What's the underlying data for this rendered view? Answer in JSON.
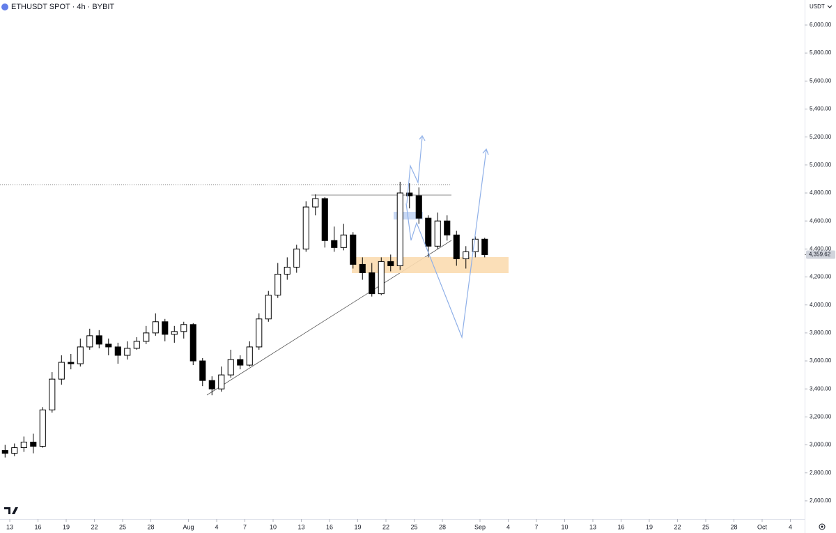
{
  "chart_data": {
    "type": "candlestick",
    "title": "ETHUSDT SPOT · 4h · BYBIT",
    "currency": "USDT",
    "up_color": "#ffffff",
    "down_color": "#000000",
    "x": [
      12.5,
      13.5,
      14.5,
      15.5,
      16.5,
      17.5,
      18.5,
      19.5,
      20.5,
      21.5,
      22.5,
      23.5,
      24.5,
      25.5,
      26.5,
      27.5,
      28.5,
      29.5,
      30.5,
      31.5,
      32.5,
      33.5,
      34.5,
      35.5,
      36.5,
      37.5,
      38.5,
      39.5,
      40.5,
      41.5,
      42.5,
      43.5,
      44.5,
      45.5,
      46.5,
      47.5,
      48.5,
      49.5,
      50.5,
      51.5,
      52.5,
      53.5,
      54.5,
      55.5,
      56.5,
      57.5,
      58.5,
      59.5,
      60.5,
      61.5,
      62.5,
      63.5
    ],
    "open": [
      2960,
      2940,
      2980,
      3020,
      2990,
      3250,
      3470,
      3590,
      3580,
      3700,
      3780,
      3720,
      3700,
      3640,
      3690,
      3740,
      3800,
      3880,
      3790,
      3810,
      3860,
      3600,
      3460,
      3400,
      3500,
      3610,
      3570,
      3700,
      3900,
      4070,
      4220,
      4270,
      4400,
      4700,
      4760,
      4460,
      4410,
      4500,
      4290,
      4230,
      4080,
      4310,
      4280,
      4800,
      4780,
      4620,
      4420,
      4600,
      4500,
      4330,
      4380,
      4470
    ],
    "high": [
      3000,
      3010,
      3060,
      3080,
      3270,
      3520,
      3640,
      3650,
      3760,
      3830,
      3820,
      3760,
      3730,
      3740,
      3770,
      3850,
      3940,
      3900,
      3850,
      3880,
      3870,
      3620,
      3490,
      3560,
      3680,
      3640,
      3740,
      3940,
      4100,
      4300,
      4340,
      4430,
      4740,
      4790,
      4770,
      4560,
      4580,
      4520,
      4340,
      4300,
      4340,
      4360,
      4880,
      4870,
      4840,
      4640,
      4660,
      4640,
      4530,
      4420,
      4490,
      4480
    ],
    "low": [
      2910,
      2920,
      2950,
      2940,
      2980,
      3230,
      3430,
      3540,
      3560,
      3680,
      3690,
      3640,
      3580,
      3610,
      3680,
      3720,
      3780,
      3740,
      3730,
      3760,
      3570,
      3420,
      3355,
      3380,
      3480,
      3540,
      3560,
      3680,
      3880,
      4050,
      4180,
      4230,
      4380,
      4640,
      4410,
      4380,
      4390,
      4260,
      4180,
      4060,
      4070,
      4240,
      4250,
      4690,
      4580,
      4340,
      4400,
      4460,
      4280,
      4260,
      4340,
      4340
    ],
    "close": [
      2940,
      2980,
      3020,
      2990,
      3250,
      3470,
      3590,
      3580,
      3700,
      3780,
      3720,
      3700,
      3640,
      3690,
      3740,
      3800,
      3880,
      3790,
      3810,
      3860,
      3600,
      3460,
      3400,
      3500,
      3610,
      3570,
      3700,
      3900,
      4070,
      4220,
      4270,
      4400,
      4700,
      4760,
      4460,
      4410,
      4500,
      4290,
      4230,
      4080,
      4310,
      4280,
      4800,
      4780,
      4620,
      4420,
      4600,
      4500,
      4330,
      4380,
      4470,
      4359.62
    ],
    "last_price": {
      "value": 4359.62,
      "label": "4,359.62"
    },
    "xlim": [
      11.96,
      97.52
    ],
    "ylim": [
      2470,
      6179
    ],
    "xticks": [
      13,
      16,
      19,
      22,
      25,
      28,
      {
        "value": 32,
        "label": "Aug"
      },
      {
        "value": 35,
        "label": "4"
      },
      {
        "value": 38,
        "label": "7"
      },
      {
        "value": 41,
        "label": "10"
      },
      {
        "value": 44,
        "label": "13"
      },
      {
        "value": 47,
        "label": "16"
      },
      {
        "value": 50,
        "label": "19"
      },
      {
        "value": 53,
        "label": "22"
      },
      {
        "value": 56,
        "label": "25"
      },
      {
        "value": 59,
        "label": "28"
      },
      {
        "value": 63,
        "label": "Sep"
      },
      {
        "value": 66,
        "label": "4"
      },
      {
        "value": 69,
        "label": "7"
      },
      {
        "value": 72,
        "label": "10"
      },
      {
        "value": 75,
        "label": "13"
      },
      {
        "value": 78,
        "label": "16"
      },
      {
        "value": 81,
        "label": "19"
      },
      {
        "value": 84,
        "label": "22"
      },
      {
        "value": 87,
        "label": "25"
      },
      {
        "value": 90,
        "label": "28"
      },
      {
        "value": 93,
        "label": "Oct"
      },
      {
        "value": 96,
        "label": "4"
      }
    ],
    "yticks": [
      {
        "value": 2600,
        "label": "2,600.00"
      },
      {
        "value": 2800,
        "label": "2,800.00"
      },
      {
        "value": 3000,
        "label": "3,000.00"
      },
      {
        "value": 3200,
        "label": "3,200.00"
      },
      {
        "value": 3400,
        "label": "3,400.00"
      },
      {
        "value": 3600,
        "label": "3,600.00"
      },
      {
        "value": 3800,
        "label": "3,800.00"
      },
      {
        "value": 4000,
        "label": "4,000.00"
      },
      {
        "value": 4200,
        "label": "4,200.00"
      },
      {
        "value": 4400,
        "label": "4,400.00"
      },
      {
        "value": 4600,
        "label": "4,600.00"
      },
      {
        "value": 4800,
        "label": "4,800.00"
      },
      {
        "value": 5000,
        "label": "5,000.00"
      },
      {
        "value": 5200,
        "label": "5,200.00"
      },
      {
        "value": 5400,
        "label": "5,400.00"
      },
      {
        "value": 5600,
        "label": "5,600.00"
      },
      {
        "value": 5800,
        "label": "5,800.00"
      },
      {
        "value": 6000,
        "label": "6,000.00"
      }
    ]
  }
}
